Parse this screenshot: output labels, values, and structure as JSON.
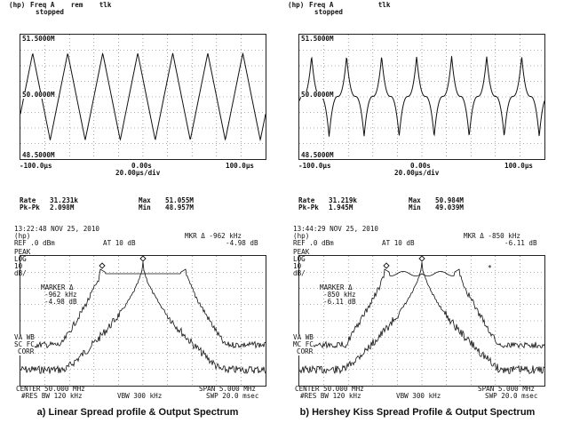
{
  "panel_a": {
    "scope": {
      "header_line1": "Freq A    rem    tlk",
      "header_line2": "stopped",
      "y_top": "51.5000M",
      "y_mid": "50.0000M",
      "y_bot": "48.5000M",
      "x_left": "-100.0μs",
      "x_center": "0.00s",
      "x_right": "100.0μs",
      "x_div": "20.00μs/div",
      "rate_label": "Rate",
      "rate_value": "31.231k",
      "pkpk_label": "Pk-Pk",
      "pkpk_value": "2.098M",
      "max_label": "Max",
      "max_value": "51.055M",
      "min_label": "Min",
      "min_value": "48.957M",
      "cycles": 7,
      "profile": "linear"
    },
    "spectrum": {
      "timestamp": "13:22:48 NOV 25, 2010",
      "ref": "REF .0 dBm",
      "atten": "AT 10 dB",
      "mkr_line1": "MKR Δ -962 kHz",
      "mkr_line2": "-4.98 dB",
      "left_labels": [
        "PEAK",
        "LOG",
        "10",
        "dB/"
      ],
      "marker_lines": [
        "MARKER Δ",
        "-962 kHz",
        "-4.98 dB"
      ],
      "bottom_left_labels": [
        "VA WB",
        "SC FC",
        "CORR"
      ],
      "center": "CENTER 50.000 MHz",
      "span": "SPAN 5.000 MHz",
      "rbw": "#RES BW 120 kHz",
      "vbw": "VBW 300 kHz",
      "swp": "SWP 20.0 msec"
    },
    "caption": "a) Linear Spread profile & Output Spectrum"
  },
  "panel_b": {
    "scope": {
      "header_line1": "Freq A           tlk",
      "header_line2": "stopped",
      "y_top": "51.5000M",
      "y_mid": "50.0000M",
      "y_bot": "48.5000M",
      "x_left": "-100.0μs",
      "x_center": "0.00s",
      "x_right": "100.0μs",
      "x_div": "20.00μs/div",
      "rate_label": "Rate",
      "rate_value": "31.219k",
      "pkpk_label": "Pk-Pk",
      "pkpk_value": "1.945M",
      "max_label": "Max",
      "max_value": "50.984M",
      "min_label": "Min",
      "min_value": "49.039M",
      "cycles": 7,
      "profile": "hershey"
    },
    "spectrum": {
      "timestamp": "13:44:29 NOV 25, 2010",
      "ref": "REF .0 dBm",
      "atten": "AT 10 dB",
      "mkr_line1": "MKR Δ -850 kHz",
      "mkr_line2": "-6.11 dB",
      "left_labels": [
        "PEAK",
        "LOG",
        "10",
        "dB/"
      ],
      "marker_lines": [
        "MARKER Δ",
        "-850 kHz",
        "-6.11 dB"
      ],
      "bottom_left_labels": [
        "VA WB",
        "MC FC",
        "CORR"
      ],
      "center": "CENTER 50.000 MHz",
      "span": "SPAN 5.000 MHz",
      "rbw": "#RES BW 120 kHz",
      "vbw": "VBW 300 kHz",
      "swp": "SWP 20.0 msec"
    },
    "caption": "b) Hershey Kiss Spread Profile & Output Spectrum"
  }
}
